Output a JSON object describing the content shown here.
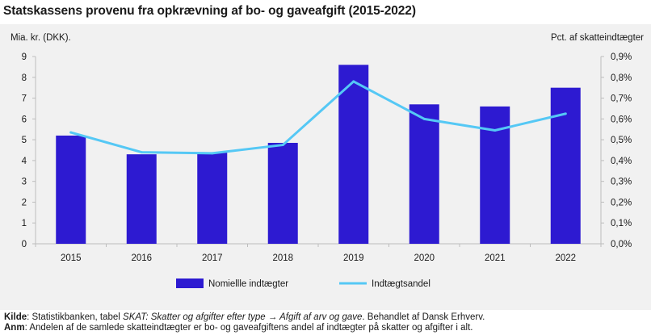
{
  "title": "Statskassens provenu fra opkrævning af bo- og gaveafgift (2015-2022)",
  "colors": {
    "bar": "#2d1ad1",
    "line": "#55c8f5",
    "panel": "#f1f1f1",
    "axis": "#bdbdbd",
    "text": "#1a1a1a"
  },
  "chart_data": {
    "type": "bar",
    "title": "Statskassens provenu fra opkrævning af bo- og gaveafgift (2015-2022)",
    "categories": [
      "2015",
      "2016",
      "2017",
      "2018",
      "2019",
      "2020",
      "2021",
      "2022"
    ],
    "y_left_label": "Mia. kr. (DKK).",
    "y_right_label": "Pct. af skatteindtægter",
    "ylim_left": [
      0,
      9
    ],
    "ylim_right": [
      0,
      0.9
    ],
    "left_ticks": [
      "0",
      "1",
      "2",
      "3",
      "4",
      "5",
      "6",
      "7",
      "8",
      "9"
    ],
    "right_ticks": [
      "0,0%",
      "0,1%",
      "0,2%",
      "0,3%",
      "0,4%",
      "0,5%",
      "0,6%",
      "0,7%",
      "0,8%",
      "0,9%"
    ],
    "series": [
      {
        "name": "Nomiellle indtægter",
        "type": "bar",
        "axis": "left",
        "values": [
          5.2,
          4.3,
          4.4,
          4.85,
          8.6,
          6.7,
          6.6,
          7.5
        ]
      },
      {
        "name": "Indtægtsandel",
        "type": "line",
        "axis": "right",
        "values": [
          0.535,
          0.44,
          0.435,
          0.475,
          0.78,
          0.6,
          0.545,
          0.625
        ]
      }
    ]
  },
  "footer": {
    "source_label": "Kilde",
    "source_plain": ": Statistikbanken, tabel ",
    "source_italic": "SKAT: Skatter og afgifter efter type → Afgift af arv og gave",
    "source_end": ". Behandlet af Dansk Erhverv.",
    "note_label": "Anm",
    "note_text": ": Andelen af de samlede skatteindtægter er bo- og gaveafgiftens andel af indtægter på skatter og afgifter i alt."
  }
}
